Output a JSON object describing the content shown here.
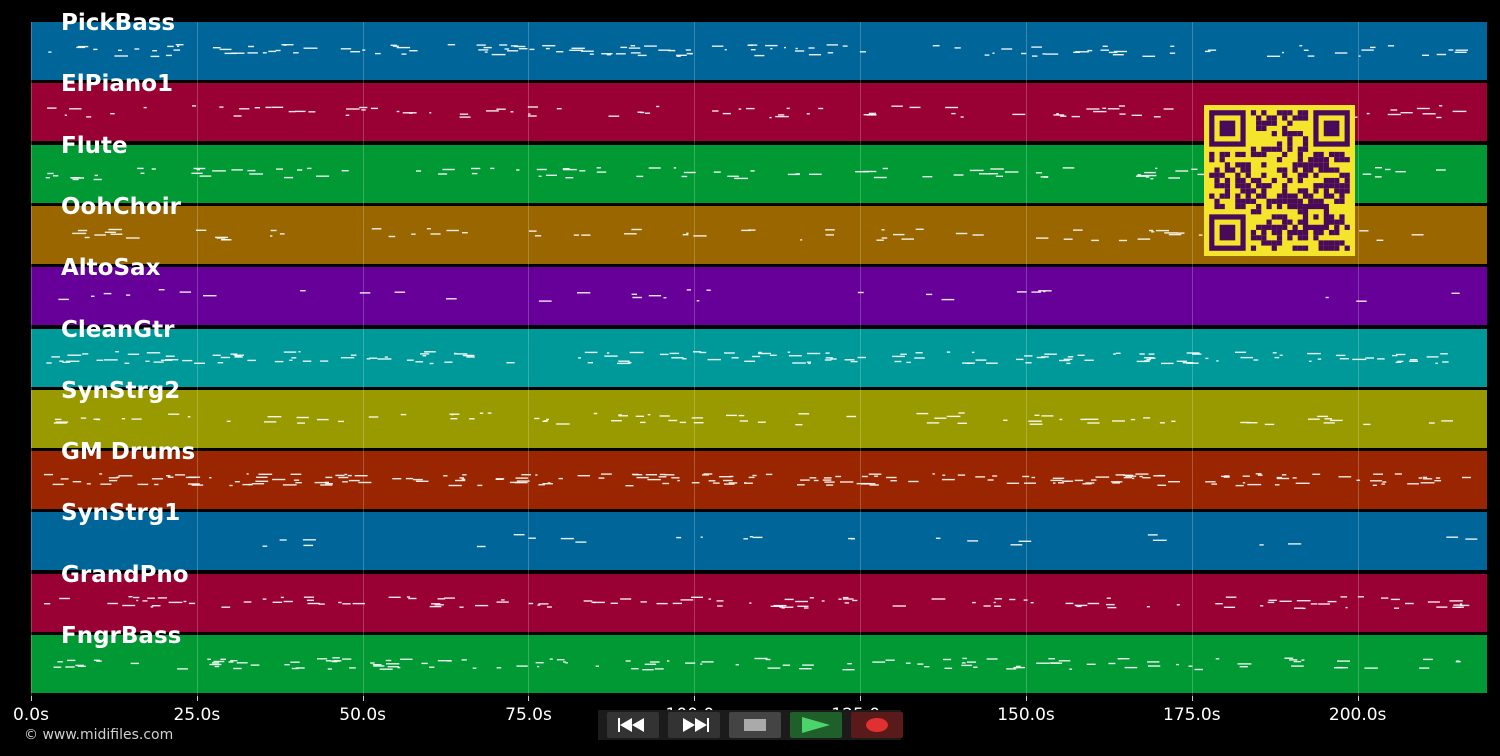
{
  "tracks": [
    {
      "name": "PickBass",
      "color": "#006699",
      "density": 0.55
    },
    {
      "name": "ElPiano1",
      "color": "#990033",
      "density": 0.35
    },
    {
      "name": "Flute",
      "color": "#009933",
      "density": 0.4
    },
    {
      "name": "OohChoir",
      "color": "#996600",
      "density": 0.25
    },
    {
      "name": "AltoSax",
      "color": "#660099",
      "density": 0.05
    },
    {
      "name": "CleanGtr",
      "color": "#009999",
      "density": 0.7
    },
    {
      "name": "SynStrg2",
      "color": "#999900",
      "density": 0.3
    },
    {
      "name": "GM Drums",
      "color": "#992600",
      "density": 0.9
    },
    {
      "name": "SynStrg1",
      "color": "#006699",
      "density": 0.05
    },
    {
      "name": "GrandPno",
      "color": "#990033",
      "density": 0.5
    },
    {
      "name": "FngrBass",
      "color": "#009933",
      "density": 0.55
    }
  ],
  "time_axis": {
    "min_seconds": 0,
    "max_seconds": 219.5,
    "ticks": [
      {
        "value": 0,
        "label": "0.0s"
      },
      {
        "value": 25,
        "label": "25.0s"
      },
      {
        "value": 50,
        "label": "50.0s"
      },
      {
        "value": 75,
        "label": "75.0s"
      },
      {
        "value": 100,
        "label": "100.0s"
      },
      {
        "value": 125,
        "label": "125.0s"
      },
      {
        "value": 150,
        "label": "150.0s"
      },
      {
        "value": 175,
        "label": "175.0s"
      },
      {
        "value": 200,
        "label": "200.0s"
      }
    ]
  },
  "copyright": "© www.midifiles.com",
  "transport": {
    "rewind_icon": "rewind-icon",
    "forward_icon": "fast-forward-icon",
    "stop_icon": "stop-icon",
    "play_icon": "play-icon",
    "record_icon": "record-icon",
    "rewind_bg": "#333333",
    "stop_bg": "#444444",
    "play_bg": "#1f5f2a",
    "record_bg": "#5a1a1a"
  }
}
